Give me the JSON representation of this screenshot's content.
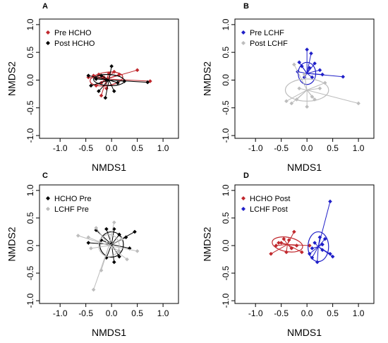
{
  "chart_data": [
    {
      "panel": "A",
      "type": "scatter",
      "xlabel": "NMDS1",
      "ylabel": "NMDS2",
      "xlim": [
        -1.4,
        1.3
      ],
      "ylim": [
        -1.05,
        1.1
      ],
      "xticks": [
        -1.0,
        -0.5,
        0.0,
        0.5,
        1.0
      ],
      "yticks": [
        -1.0,
        -0.5,
        0.0,
        0.5,
        1.0
      ],
      "tick_labels_x": [
        "-1.0",
        "-0.5",
        "0.0",
        "0.5",
        "1.0"
      ],
      "tick_labels_y": [
        "-1.0",
        "-0.5",
        "0.0",
        "0.5",
        "1.0"
      ],
      "legend_position": "top-left",
      "series": [
        {
          "name": "Pre HCHO",
          "color": "#c0282d",
          "centroid": [
            -0.1,
            0.02
          ],
          "ellipse": {
            "rx": 0.32,
            "ry": 0.12,
            "angle": 8
          },
          "points": [
            [
              -0.45,
              0.05
            ],
            [
              -0.35,
              0.08
            ],
            [
              -0.25,
              0.1
            ],
            [
              -0.15,
              0.05
            ],
            [
              -0.2,
              -0.05
            ],
            [
              -0.1,
              -0.15
            ],
            [
              -0.3,
              -0.1
            ],
            [
              0.05,
              0.15
            ],
            [
              0.15,
              0.1
            ],
            [
              0.5,
              0.18
            ],
            [
              0.75,
              -0.02
            ],
            [
              -0.2,
              -0.28
            ],
            [
              -0.05,
              0.12
            ]
          ]
        },
        {
          "name": "Post HCHO",
          "color": "#000000",
          "centroid": [
            -0.05,
            0.0
          ],
          "ellipse": {
            "rx": 0.3,
            "ry": 0.1,
            "angle": -3
          },
          "points": [
            [
              -0.45,
              0.08
            ],
            [
              -0.3,
              0.02
            ],
            [
              -0.2,
              0.08
            ],
            [
              -0.1,
              0.0
            ],
            [
              0.0,
              0.25
            ],
            [
              0.05,
              -0.2
            ],
            [
              -0.4,
              -0.1
            ],
            [
              -0.25,
              -0.2
            ],
            [
              -0.12,
              -0.32
            ],
            [
              0.25,
              -0.02
            ],
            [
              0.7,
              -0.04
            ],
            [
              0.12,
              -0.05
            ]
          ]
        }
      ]
    },
    {
      "panel": "B",
      "type": "scatter",
      "xlabel": "NMDS1",
      "ylabel": "NMDS2",
      "xlim": [
        -1.4,
        1.3
      ],
      "ylim": [
        -1.05,
        1.1
      ],
      "xticks": [
        -1.0,
        -0.5,
        0.0,
        0.5,
        1.0
      ],
      "yticks": [
        -1.0,
        -0.5,
        0.0,
        0.5,
        1.0
      ],
      "tick_labels_x": [
        "-1.0",
        "-0.5",
        "0.0",
        "0.5",
        "1.0"
      ],
      "tick_labels_y": [
        "-1.0",
        "-0.5",
        "0.0",
        "0.5",
        "1.0"
      ],
      "legend_position": "top-left",
      "series": [
        {
          "name": "Pre LCHF",
          "color": "#1f1fc8",
          "centroid": [
            0.0,
            0.12
          ],
          "ellipse": {
            "rx": 0.17,
            "ry": 0.2,
            "angle": 0
          },
          "points": [
            [
              0.0,
              0.55
            ],
            [
              0.08,
              0.48
            ],
            [
              -0.1,
              0.25
            ],
            [
              0.15,
              0.3
            ],
            [
              -0.18,
              0.15
            ],
            [
              0.25,
              0.18
            ],
            [
              -0.05,
              0.05
            ],
            [
              0.1,
              0.05
            ],
            [
              -0.15,
              0.32
            ],
            [
              0.05,
              0.22
            ],
            [
              0.7,
              0.06
            ],
            [
              0.3,
              0.1
            ]
          ]
        },
        {
          "name": "Post LCHF",
          "color": "#bdbdbd",
          "centroid": [
            0.0,
            -0.18
          ],
          "ellipse": {
            "rx": 0.42,
            "ry": 0.2,
            "angle": 0
          },
          "points": [
            [
              -0.25,
              0.28
            ],
            [
              -0.4,
              -0.38
            ],
            [
              -0.2,
              -0.35
            ],
            [
              0.0,
              -0.48
            ],
            [
              -0.3,
              -0.42
            ],
            [
              0.1,
              -0.3
            ],
            [
              -0.15,
              -0.15
            ],
            [
              0.25,
              -0.15
            ],
            [
              0.35,
              -0.05
            ],
            [
              1.0,
              -0.42
            ],
            [
              -0.05,
              0.1
            ],
            [
              0.15,
              -0.35
            ]
          ]
        }
      ]
    },
    {
      "panel": "C",
      "type": "scatter",
      "xlabel": "NMDS1",
      "ylabel": "NMDS2",
      "xlim": [
        -1.4,
        1.3
      ],
      "ylim": [
        -1.05,
        1.1
      ],
      "xticks": [
        -1.0,
        -0.5,
        0.0,
        0.5,
        1.0
      ],
      "yticks": [
        -1.0,
        -0.5,
        0.0,
        0.5,
        1.0
      ],
      "tick_labels_x": [
        "-1.0",
        "-0.5",
        "0.0",
        "0.5",
        "1.0"
      ],
      "tick_labels_y": [
        "-1.0",
        "-0.5",
        "0.0",
        "0.5",
        "1.0"
      ],
      "legend_position": "top-left",
      "series": [
        {
          "name": "HCHO Pre",
          "color": "#000000",
          "centroid": [
            0.0,
            0.02
          ],
          "ellipse": {
            "rx": 0.23,
            "ry": 0.23,
            "angle": 0
          },
          "points": [
            [
              -0.45,
              0.05
            ],
            [
              -0.3,
              0.28
            ],
            [
              -0.1,
              0.3
            ],
            [
              0.05,
              0.3
            ],
            [
              0.15,
              0.2
            ],
            [
              0.28,
              0.15
            ],
            [
              0.45,
              0.25
            ],
            [
              0.35,
              -0.05
            ],
            [
              0.15,
              -0.2
            ],
            [
              0.05,
              -0.3
            ],
            [
              -0.1,
              -0.22
            ],
            [
              -0.2,
              0.1
            ]
          ]
        },
        {
          "name": "LCHF Pre",
          "color": "#bdbdbd",
          "centroid": [
            -0.05,
            0.0
          ],
          "ellipse": {
            "rx": 0.2,
            "ry": 0.2,
            "angle": 0
          },
          "points": [
            [
              -0.65,
              0.18
            ],
            [
              -0.45,
              0.15
            ],
            [
              -0.3,
              0.32
            ],
            [
              0.05,
              0.42
            ],
            [
              0.2,
              0.12
            ],
            [
              0.5,
              -0.1
            ],
            [
              0.3,
              -0.25
            ],
            [
              -0.2,
              -0.45
            ],
            [
              -0.35,
              -0.8
            ],
            [
              -0.4,
              -0.05
            ],
            [
              0.15,
              -0.1
            ]
          ]
        }
      ]
    },
    {
      "panel": "D",
      "type": "scatter",
      "xlabel": "NMDS1",
      "ylabel": "NMDS2",
      "xlim": [
        -1.4,
        1.3
      ],
      "ylim": [
        -1.05,
        1.1
      ],
      "xticks": [
        -1.0,
        -0.5,
        0.0,
        0.5,
        1.0
      ],
      "yticks": [
        -1.0,
        -0.5,
        0.0,
        0.5,
        1.0
      ],
      "tick_labels_x": [
        "-1.0",
        "-0.5",
        "0.0",
        "0.5",
        "1.0"
      ],
      "tick_labels_y": [
        "-1.0",
        "-0.5",
        "0.0",
        "0.5",
        "1.0"
      ],
      "legend_position": "top-left",
      "series": [
        {
          "name": "HCHO Post",
          "color": "#c0282d",
          "centroid": [
            -0.38,
            0.02
          ],
          "ellipse": {
            "rx": 0.3,
            "ry": 0.13,
            "angle": -10
          },
          "points": [
            [
              -0.7,
              -0.15
            ],
            [
              -0.6,
              0.0
            ],
            [
              -0.5,
              0.05
            ],
            [
              -0.45,
              0.12
            ],
            [
              -0.35,
              0.1
            ],
            [
              -0.3,
              -0.05
            ],
            [
              -0.2,
              0.0
            ],
            [
              -0.4,
              -0.12
            ],
            [
              -0.25,
              0.25
            ],
            [
              -0.1,
              -0.12
            ],
            [
              0.05,
              0.0
            ],
            [
              -0.55,
              0.05
            ]
          ]
        },
        {
          "name": "LCHF Post",
          "color": "#1f1fc8",
          "centroid": [
            0.22,
            -0.02
          ],
          "ellipse": {
            "rx": 0.2,
            "ry": 0.27,
            "angle": 0
          },
          "points": [
            [
              0.45,
              0.8
            ],
            [
              0.35,
              0.12
            ],
            [
              0.25,
              0.15
            ],
            [
              0.15,
              0.05
            ],
            [
              0.1,
              -0.05
            ],
            [
              0.05,
              -0.15
            ],
            [
              0.1,
              -0.22
            ],
            [
              0.3,
              -0.08
            ],
            [
              0.45,
              -0.15
            ],
            [
              0.5,
              -0.2
            ],
            [
              0.2,
              -0.3
            ],
            [
              0.3,
              0.02
            ]
          ]
        }
      ]
    }
  ]
}
